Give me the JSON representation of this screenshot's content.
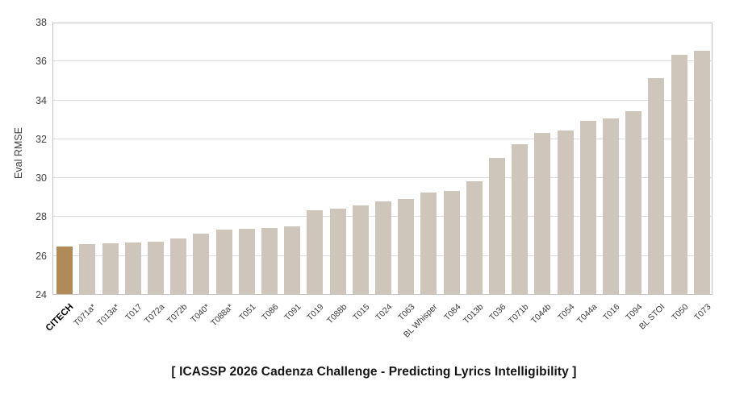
{
  "chart_data": {
    "type": "bar",
    "title": "[ ICASSP 2026 Cadenza Challenge - Predicting Lyrics Intelligibility ]",
    "ylabel": "Eval RMSE",
    "xlabel": "",
    "ylim": [
      24,
      38
    ],
    "ytick_step": 2,
    "yticks": [
      24,
      26,
      28,
      30,
      32,
      34,
      36,
      38
    ],
    "grid": true,
    "legend": "none",
    "categories": [
      "CITECH",
      "T071a*",
      "T013a*",
      "T017",
      "T072a",
      "T072b",
      "T040*",
      "T088a*",
      "T051",
      "T086",
      "T091",
      "T019",
      "T088b",
      "T015",
      "T024",
      "T063",
      "BL Whisper",
      "T084",
      "T013b",
      "T036",
      "T071b",
      "T044b",
      "T054",
      "T044a",
      "T016",
      "T094",
      "BL STOI",
      "T050",
      "T073"
    ],
    "values": [
      26.45,
      26.55,
      26.6,
      26.65,
      26.7,
      26.85,
      27.1,
      27.3,
      27.35,
      27.4,
      27.5,
      28.3,
      28.4,
      28.55,
      28.75,
      28.9,
      29.2,
      29.3,
      29.8,
      31.0,
      31.7,
      32.3,
      32.4,
      32.9,
      33.05,
      33.4,
      35.1,
      36.3,
      36.5
    ],
    "highlight_index": 0,
    "highlight_category": "CITECH",
    "colors": {
      "highlight_bar": "#b08b57",
      "bar": "#cec5bb",
      "gridline": "#dcdcdc",
      "plot_border": "#c6c6c6",
      "axis_text": "#3f3f3f",
      "title_text": "#141414"
    }
  }
}
